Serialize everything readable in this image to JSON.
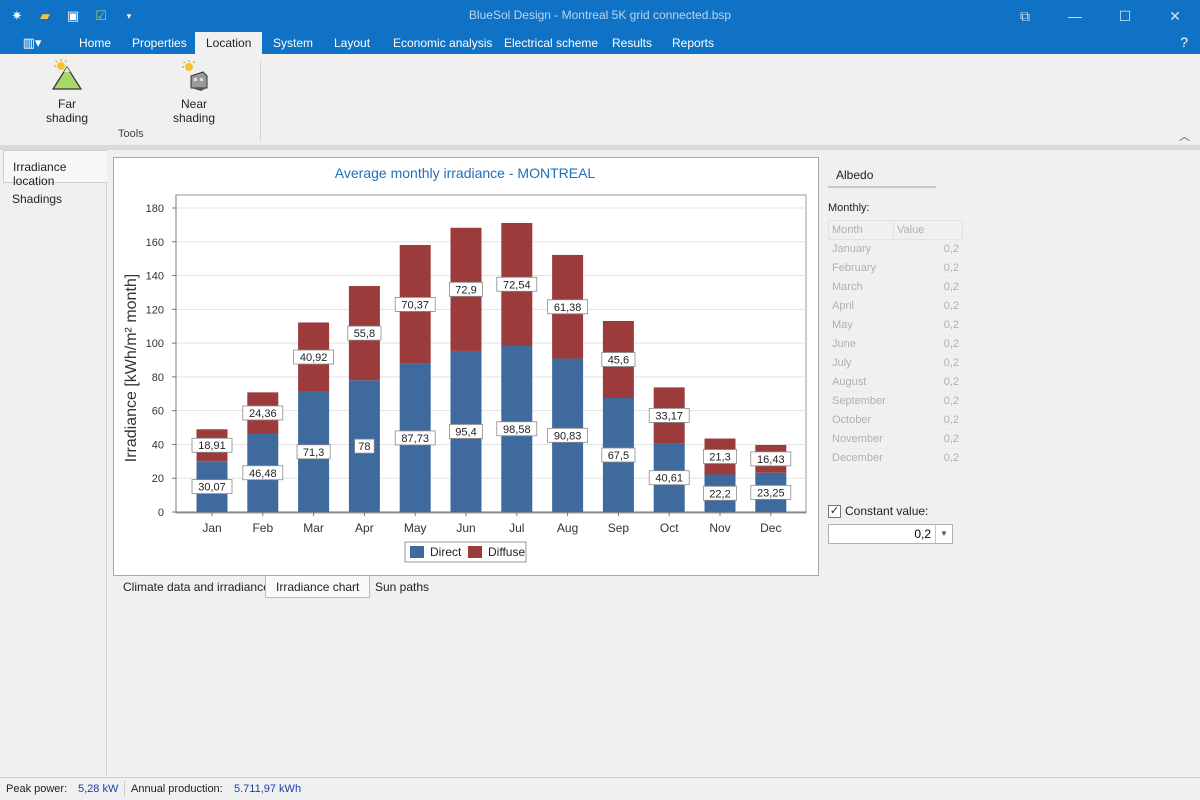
{
  "window": {
    "title": "BlueSol Design - Montreal 5K grid connected.bsp",
    "qat_icons": [
      "app-icon",
      "open-folder-icon",
      "save-icon",
      "checklist-icon",
      "qat-dropdown-icon"
    ],
    "controls": [
      "restore-icon",
      "minimize-icon",
      "maximize-icon",
      "close-icon"
    ]
  },
  "ribbon": {
    "tabs": [
      "Home",
      "Properties",
      "Location",
      "System",
      "Layout",
      "Economic analysis",
      "Electrical scheme",
      "Results",
      "Reports"
    ],
    "active_tab": "Location",
    "help": "?",
    "buttons": [
      {
        "label": "Far shading",
        "icon": "mountain-sun-icon"
      },
      {
        "label": "Near shading",
        "icon": "building-sun-icon"
      }
    ],
    "group_label": "Tools"
  },
  "left_nav": {
    "items": [
      "Irradiance location",
      "Shadings"
    ],
    "active": "Irradiance location"
  },
  "chart_data": {
    "type": "bar",
    "stacked": true,
    "title": "Average monthly irradiance - MONTREAL",
    "xlabel": "",
    "ylabel": "Irradiance [kWh/m² month]",
    "ylim": [
      0,
      180
    ],
    "yticks": [
      0,
      20,
      40,
      60,
      80,
      100,
      120,
      140,
      160,
      180
    ],
    "grid": true,
    "categories": [
      "Jan",
      "Feb",
      "Mar",
      "Apr",
      "May",
      "Jun",
      "Jul",
      "Aug",
      "Sep",
      "Oct",
      "Nov",
      "Dec"
    ],
    "series": [
      {
        "name": "Direct",
        "color": "#3f6a9e",
        "values": [
          30.07,
          46.48,
          71.3,
          78,
          87.73,
          95.4,
          98.58,
          90.83,
          67.5,
          40.61,
          22.2,
          23.25
        ],
        "labels": [
          "30,07",
          "46,48",
          "71,3",
          "78",
          "87,73",
          "95,4",
          "98,58",
          "90,83",
          "67,5",
          "40,61",
          "22,2",
          "23,25"
        ]
      },
      {
        "name": "Diffuse",
        "color": "#9b3b3c",
        "values": [
          18.91,
          24.36,
          40.92,
          55.8,
          70.37,
          72.9,
          72.54,
          61.38,
          45.6,
          33.17,
          21.3,
          16.43
        ],
        "labels": [
          "18,91",
          "24,36",
          "40,92",
          "55,8",
          "70,37",
          "72,9",
          "72,54",
          "61,38",
          "45,6",
          "33,17",
          "21,3",
          "16,43"
        ]
      }
    ],
    "legend": "bottom-center"
  },
  "bottom_tabs": {
    "items": [
      "Climate data and irradiance",
      "Irradiance chart",
      "Sun paths"
    ],
    "active": "Irradiance chart"
  },
  "albedo": {
    "title": "Albedo",
    "monthly_label": "Monthly:",
    "columns": [
      "Month",
      "Value"
    ],
    "rows": [
      {
        "month": "January",
        "value": "0,2"
      },
      {
        "month": "February",
        "value": "0,2"
      },
      {
        "month": "March",
        "value": "0,2"
      },
      {
        "month": "April",
        "value": "0,2"
      },
      {
        "month": "May",
        "value": "0,2"
      },
      {
        "month": "June",
        "value": "0,2"
      },
      {
        "month": "July",
        "value": "0,2"
      },
      {
        "month": "August",
        "value": "0,2"
      },
      {
        "month": "September",
        "value": "0,2"
      },
      {
        "month": "October",
        "value": "0,2"
      },
      {
        "month": "November",
        "value": "0,2"
      },
      {
        "month": "December",
        "value": "0,2"
      }
    ],
    "constant_label": "Constant value:",
    "constant_checked": true,
    "constant_value": "0,2"
  },
  "status": {
    "peak_power_label": "Peak power:",
    "peak_power_value": "5,28 kW",
    "annual_production_label": "Annual production:",
    "annual_production_value": "5.711,97 kWh"
  }
}
